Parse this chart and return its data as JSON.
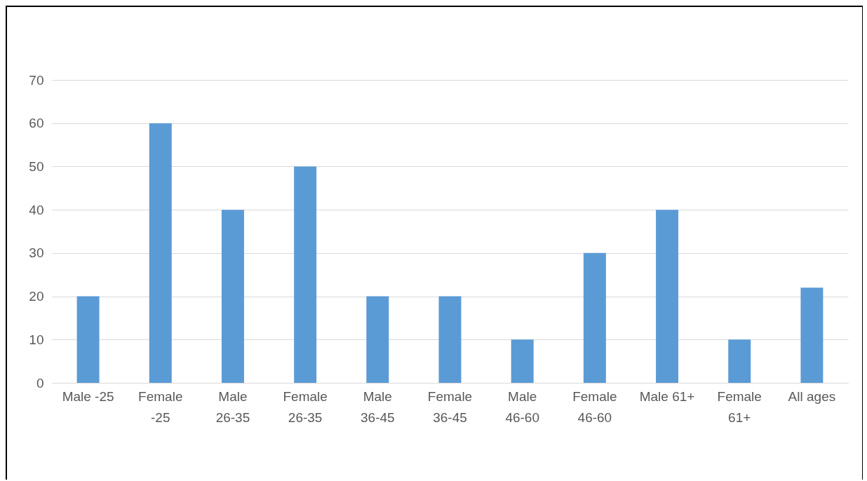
{
  "chart_data": {
    "type": "bar",
    "categories": [
      "Male -25",
      "Female -25",
      "Male 26-35",
      "Female 26-35",
      "Male 36-45",
      "Female 36-45",
      "Male 46-60",
      "Female 46-60",
      "Male 61+",
      "Female 61+",
      "All ages"
    ],
    "series": [
      {
        "color": "#5b9bd5",
        "values": [
          20,
          60,
          40,
          50,
          20,
          20,
          10,
          30,
          40,
          10,
          22
        ]
      }
    ],
    "ylim": [
      0,
      70
    ],
    "yticks": [
      0,
      10,
      20,
      30,
      40,
      50,
      60,
      70
    ],
    "grid": "y"
  }
}
